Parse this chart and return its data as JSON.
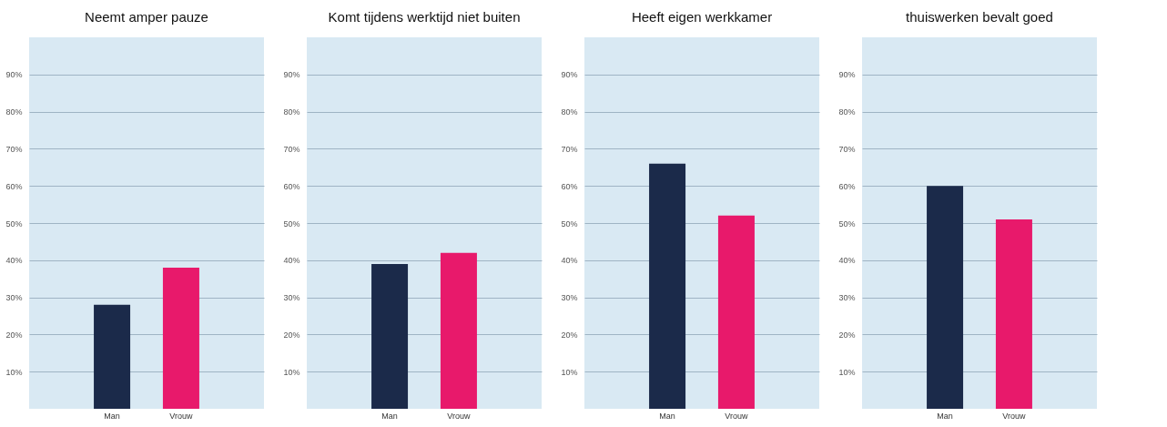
{
  "chart_data": [
    {
      "type": "bar",
      "title": "Neemt amper pauze",
      "categories": [
        "Man",
        "Vrouw"
      ],
      "values": [
        28,
        38
      ],
      "colors": [
        "#1b2a4a",
        "#e8196b"
      ],
      "ylim": [
        0,
        100
      ],
      "yticks": [
        {
          "value": 10,
          "label": "10%"
        },
        {
          "value": 20,
          "label": "20%"
        },
        {
          "value": 30,
          "label": "30%"
        },
        {
          "value": 40,
          "label": "40%"
        },
        {
          "value": 50,
          "label": "50%"
        },
        {
          "value": 60,
          "label": "60%"
        },
        {
          "value": 70,
          "label": "70%"
        },
        {
          "value": 80,
          "label": "80%"
        },
        {
          "value": 90,
          "label": "90%"
        }
      ],
      "grid": "y"
    },
    {
      "type": "bar",
      "title": "Komt tijdens werktijd niet buiten",
      "categories": [
        "Man",
        "Vrouw"
      ],
      "values": [
        39,
        42
      ],
      "colors": [
        "#1b2a4a",
        "#e8196b"
      ],
      "ylim": [
        0,
        100
      ],
      "yticks": [
        {
          "value": 10,
          "label": "10%"
        },
        {
          "value": 20,
          "label": "20%"
        },
        {
          "value": 30,
          "label": "30%"
        },
        {
          "value": 40,
          "label": "40%"
        },
        {
          "value": 50,
          "label": "50%"
        },
        {
          "value": 60,
          "label": "60%"
        },
        {
          "value": 70,
          "label": "70%"
        },
        {
          "value": 80,
          "label": "80%"
        },
        {
          "value": 90,
          "label": "90%"
        }
      ],
      "grid": "y"
    },
    {
      "type": "bar",
      "title": "Heeft eigen werkkamer",
      "categories": [
        "Man",
        "Vrouw"
      ],
      "values": [
        66,
        52
      ],
      "colors": [
        "#1b2a4a",
        "#e8196b"
      ],
      "ylim": [
        0,
        100
      ],
      "yticks": [
        {
          "value": 10,
          "label": "10%"
        },
        {
          "value": 20,
          "label": "20%"
        },
        {
          "value": 30,
          "label": "30%"
        },
        {
          "value": 40,
          "label": "40%"
        },
        {
          "value": 50,
          "label": "50%"
        },
        {
          "value": 60,
          "label": "60%"
        },
        {
          "value": 70,
          "label": "70%"
        },
        {
          "value": 80,
          "label": "80%"
        },
        {
          "value": 90,
          "label": "90%"
        }
      ],
      "grid": "y"
    },
    {
      "type": "bar",
      "title": "thuiswerken bevalt goed",
      "categories": [
        "Man",
        "Vrouw"
      ],
      "values": [
        60,
        51
      ],
      "colors": [
        "#1b2a4a",
        "#e8196b"
      ],
      "ylim": [
        0,
        100
      ],
      "yticks": [
        {
          "value": 10,
          "label": "10%"
        },
        {
          "value": 20,
          "label": "20%"
        },
        {
          "value": 30,
          "label": "30%"
        },
        {
          "value": 40,
          "label": "40%"
        },
        {
          "value": 50,
          "label": "50%"
        },
        {
          "value": 60,
          "label": "60%"
        },
        {
          "value": 70,
          "label": "70%"
        },
        {
          "value": 80,
          "label": "80%"
        },
        {
          "value": 90,
          "label": "90%"
        }
      ],
      "grid": "y"
    }
  ]
}
